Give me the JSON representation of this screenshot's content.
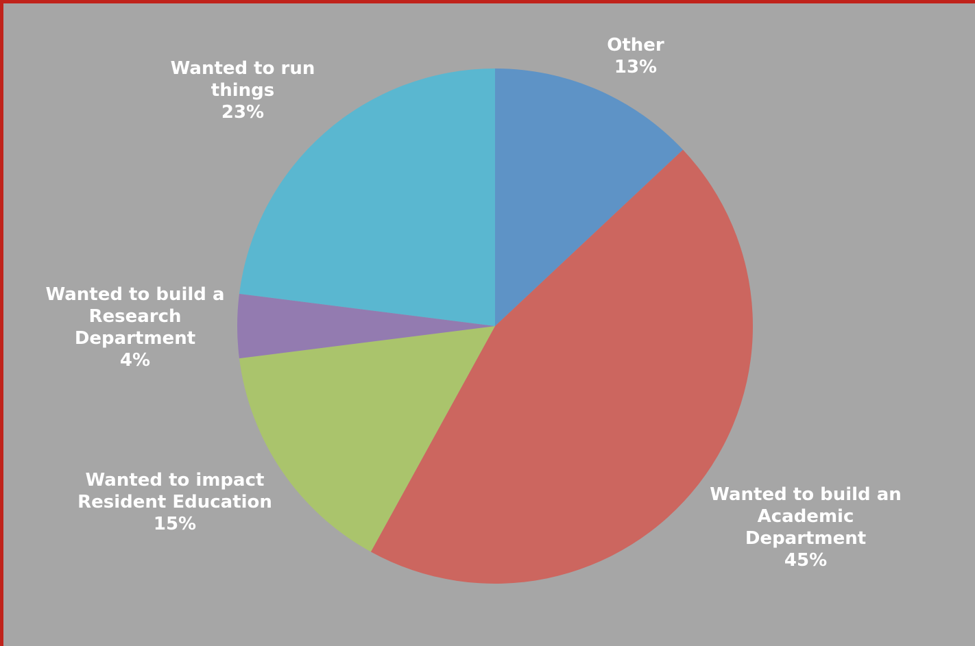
{
  "chart_data": {
    "type": "pie",
    "title": "",
    "slices": [
      {
        "label": "Other",
        "value": 13,
        "percent_label": "13%",
        "color": "#5e93c6"
      },
      {
        "label": "Wanted to build an Academic Department",
        "value": 45,
        "percent_label": "45%",
        "color": "#cc665f"
      },
      {
        "label": "Wanted to impact Resident Education",
        "value": 15,
        "percent_label": "15%",
        "color": "#aac46c"
      },
      {
        "label": "Wanted to build a Research Department",
        "value": 4,
        "percent_label": "4%",
        "color": "#937bb0"
      },
      {
        "label": "Wanted to run things",
        "value": 23,
        "percent_label": "23%",
        "color": "#5ab7d0"
      }
    ],
    "start_angle": "12 o'clock",
    "direction": "clockwise",
    "legend": "none",
    "label_lines": [
      [
        "Other",
        "13%"
      ],
      [
        "Wanted to build an",
        "Academic",
        "Department",
        "45%"
      ],
      [
        "Wanted to impact",
        "Resident Education",
        "15%"
      ],
      [
        "Wanted to build a",
        "Research",
        "Department",
        "4%"
      ],
      [
        "Wanted to run",
        "things",
        "23%"
      ]
    ]
  },
  "colors": {
    "background": "#a6a6a6",
    "frame_border": "#c0231b",
    "label_text": "#ffffff"
  }
}
